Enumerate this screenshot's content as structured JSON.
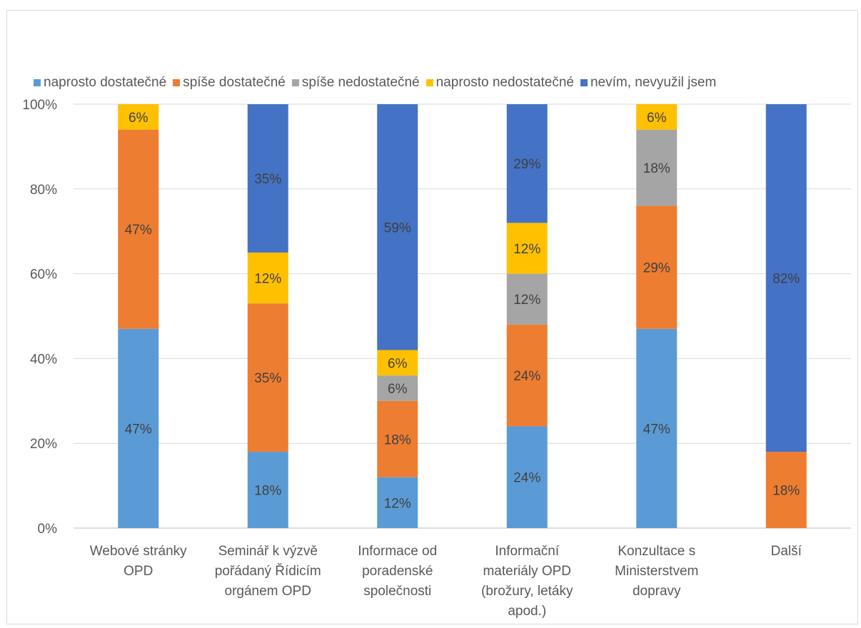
{
  "chart_data": {
    "type": "bar",
    "stacked": true,
    "percent": true,
    "legend_position": "top",
    "grid": true,
    "ylim": [
      0,
      100
    ],
    "y_ticks": [
      "0%",
      "20%",
      "40%",
      "60%",
      "80%",
      "100%"
    ],
    "categories": [
      [
        "Webové stránky",
        "OPD"
      ],
      [
        "Seminář k výzvě",
        "pořádaný Řídicím",
        "orgánem OPD"
      ],
      [
        "Informace od",
        "poradenské",
        "společnosti"
      ],
      [
        "Informační",
        "materiály OPD",
        "(brožury, letáky",
        "apod.)"
      ],
      [
        "Konzultace s",
        "Ministerstvem",
        "dopravy"
      ],
      [
        "Další"
      ]
    ],
    "series": [
      {
        "name": "naprosto dostatečné",
        "color": "#5B9BD5",
        "values": [
          47,
          18,
          12,
          24,
          47,
          0
        ],
        "labels": [
          "47%",
          "18%",
          "12%",
          "24%",
          "47%",
          ""
        ]
      },
      {
        "name": "spíše dostatečné",
        "color": "#ED7D31",
        "values": [
          47,
          35,
          18,
          24,
          29,
          18
        ],
        "labels": [
          "47%",
          "35%",
          "18%",
          "24%",
          "29%",
          "18%"
        ]
      },
      {
        "name": "spíše nedostatečné",
        "color": "#A5A5A5",
        "values": [
          0,
          0,
          6,
          12,
          18,
          0
        ],
        "labels": [
          "",
          "",
          "6%",
          "12%",
          "18%",
          ""
        ]
      },
      {
        "name": "naprosto nedostatečné",
        "color": "#FFC000",
        "values": [
          6,
          12,
          6,
          12,
          6,
          0
        ],
        "labels": [
          "6%",
          "12%",
          "6%",
          "12%",
          "6%",
          ""
        ]
      },
      {
        "name": "nevím, nevyužil jsem",
        "color": "#4472C4",
        "values": [
          0,
          35,
          59,
          29,
          0,
          82
        ],
        "labels": [
          "",
          "35%",
          "59%",
          "29%",
          "",
          "82%"
        ]
      }
    ]
  }
}
